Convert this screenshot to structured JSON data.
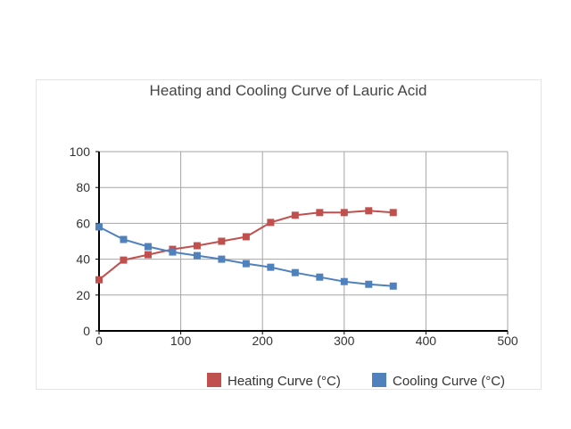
{
  "chart_data": {
    "type": "line",
    "title": "Heating and Cooling Curve of Lauric Acid",
    "xlabel": "",
    "ylabel": "",
    "xlim": [
      0,
      500
    ],
    "ylim": [
      0,
      100
    ],
    "x_ticks": [
      0,
      100,
      200,
      300,
      400,
      500
    ],
    "y_ticks": [
      0,
      20,
      40,
      60,
      80,
      100
    ],
    "grid": true,
    "legend_position": "bottom-right",
    "series": [
      {
        "name": "Heating Curve (°C)",
        "color": "#c0504d",
        "marker": "square",
        "x": [
          0,
          30,
          60,
          90,
          120,
          150,
          180,
          210,
          240,
          270,
          300,
          330,
          360
        ],
        "y": [
          28.5,
          39.5,
          42.5,
          45.5,
          47.5,
          50,
          52.5,
          60.5,
          64.5,
          66,
          66,
          67,
          66
        ]
      },
      {
        "name": "Cooling Curve (°C)",
        "color": "#4f81bd",
        "marker": "square",
        "x": [
          0,
          30,
          60,
          90,
          120,
          150,
          180,
          210,
          240,
          270,
          300,
          330,
          360
        ],
        "y": [
          58,
          51,
          47,
          44,
          42,
          40,
          37.5,
          35.5,
          32.5,
          30,
          27.5,
          26,
          25
        ]
      }
    ]
  }
}
